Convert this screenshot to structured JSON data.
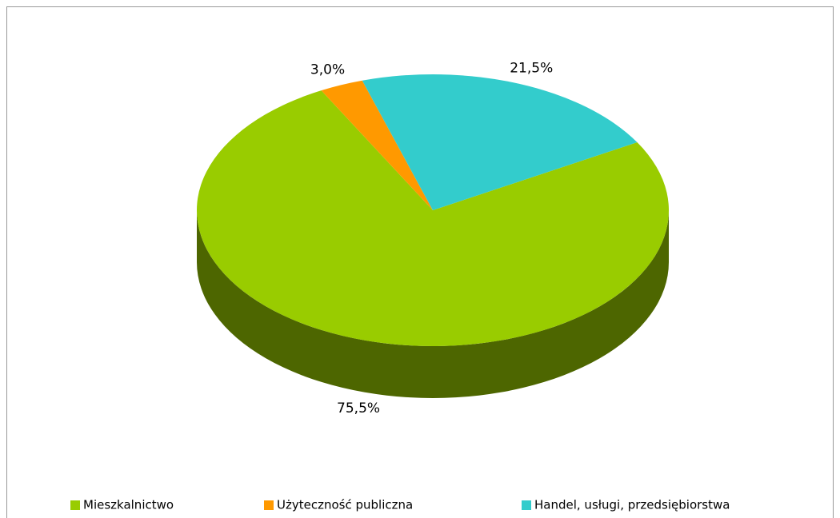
{
  "chart_data": {
    "type": "pie",
    "categories": [
      "Mieszkalnictwo",
      "Użyteczność publiczna",
      "Handel, usługi, przedsiębiorstwa"
    ],
    "values": [
      75.5,
      3.0,
      21.5
    ],
    "value_labels": [
      "75,5%",
      "3,0%",
      "21,5%"
    ],
    "colors": [
      "#99cc00",
      "#ff9900",
      "#33cccc"
    ],
    "legend": "bottom"
  }
}
